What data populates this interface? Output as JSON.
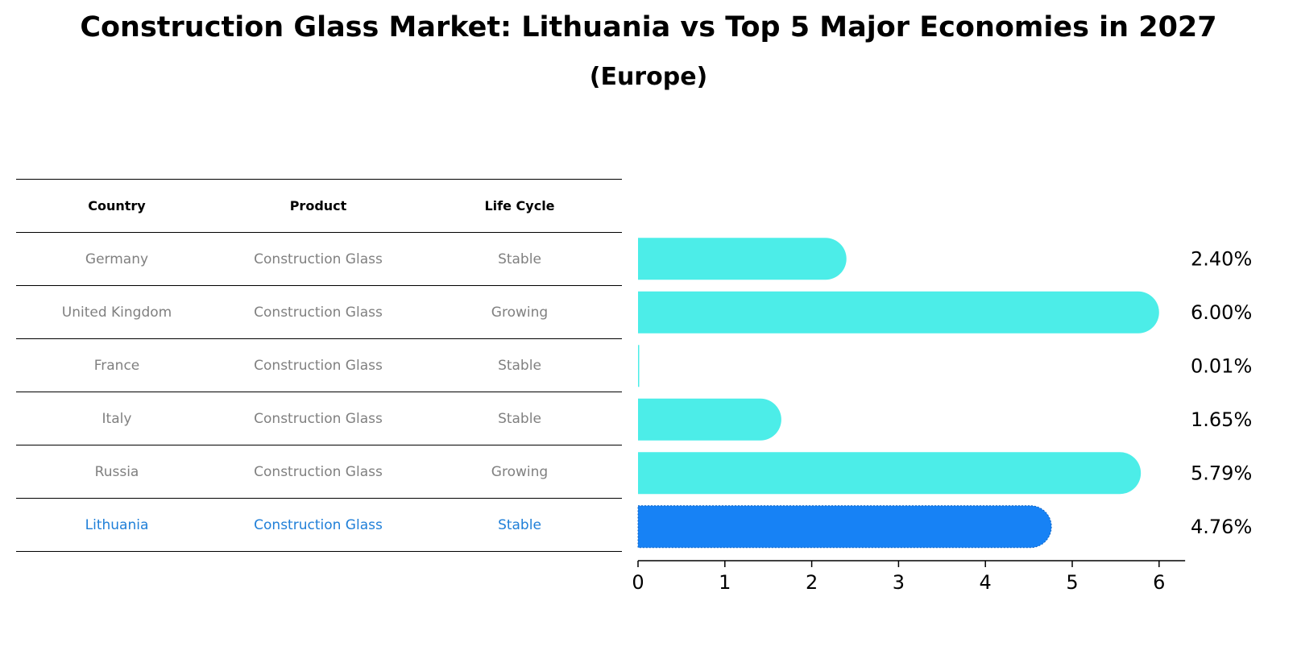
{
  "title": "Construction Glass Market: Lithuania vs Top 5 Major Economies in 2027",
  "subtitle": "(Europe)",
  "table": {
    "headers": [
      "Country",
      "Product",
      "Life Cycle"
    ],
    "rows": [
      {
        "country": "Germany",
        "product": "Construction Glass",
        "life_cycle": "Stable"
      },
      {
        "country": "United Kingdom",
        "product": "Construction Glass",
        "life_cycle": "Growing"
      },
      {
        "country": "France",
        "product": "Construction Glass",
        "life_cycle": "Stable"
      },
      {
        "country": "Italy",
        "product": "Construction Glass",
        "life_cycle": "Stable"
      },
      {
        "country": "Russia",
        "product": "Construction Glass",
        "life_cycle": "Growing"
      },
      {
        "country": "Lithuania",
        "product": "Construction Glass",
        "life_cycle": "Stable"
      }
    ]
  },
  "chart_data": {
    "type": "bar",
    "orientation": "horizontal",
    "categories": [
      "Germany",
      "United Kingdom",
      "France",
      "Italy",
      "Russia",
      "Lithuania"
    ],
    "values": [
      2.4,
      6.0,
      0.01,
      1.65,
      5.79,
      4.76
    ],
    "value_labels": [
      "2.40%",
      "6.00%",
      "0.01%",
      "1.65%",
      "5.79%",
      "4.76%"
    ],
    "xlim": [
      0,
      6.3
    ],
    "xticks": [
      0,
      1,
      2,
      3,
      4,
      5,
      6
    ],
    "grid": false,
    "highlight_category": "Lithuania",
    "colors": {
      "default": "#4cede8",
      "highlight": "#1782f5",
      "highlight_text": "#1f7fd8"
    }
  }
}
